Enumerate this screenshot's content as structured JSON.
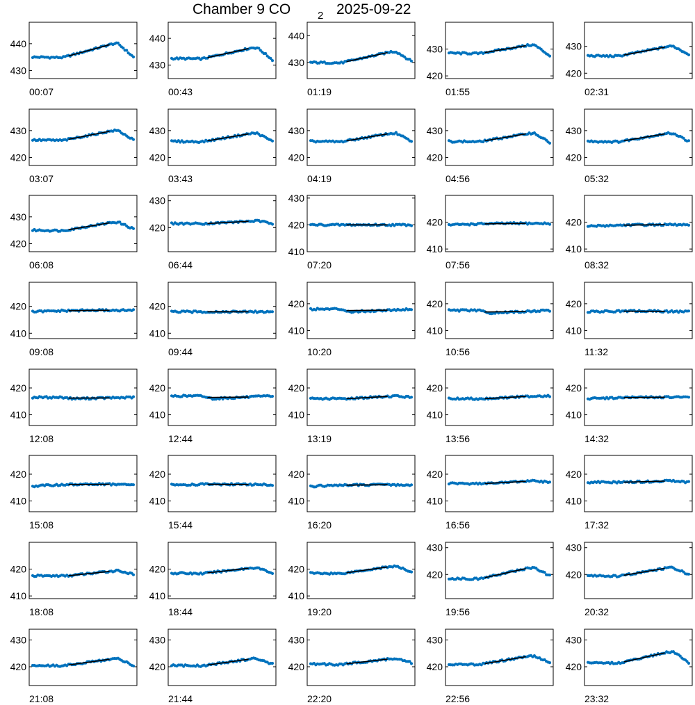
{
  "title": {
    "main": "Chamber 9 CO",
    "subscript": "2",
    "date": "2025-09-22"
  },
  "colors": {
    "measured": "#0072BD",
    "fit": "#000000",
    "axis": "#000000"
  },
  "chart_data": {
    "type": "scatter",
    "title": "Chamber 9 CO2 2025-09-22",
    "layout": "8 rows x 5 columns of small multiples",
    "grid": false,
    "panels": [
      {
        "label": "00:07",
        "ylim": [
          427,
          448
        ],
        "yticks": [
          430,
          440
        ],
        "shape": "rise-peak",
        "base": 435,
        "peak": 440,
        "end": 435
      },
      {
        "label": "00:43",
        "ylim": [
          425,
          446
        ],
        "yticks": [
          430,
          440
        ],
        "shape": "rise-peak",
        "base": 432.5,
        "peak": 436.5,
        "end": 432
      },
      {
        "label": "01:19",
        "ylim": [
          424,
          445
        ],
        "yticks": [
          430,
          440
        ],
        "shape": "rise-peak",
        "base": 430,
        "peak": 434,
        "end": 430.5
      },
      {
        "label": "01:55",
        "ylim": [
          419,
          440
        ],
        "yticks": [
          420,
          430
        ],
        "shape": "rise-peak",
        "base": 428.5,
        "peak": 431.5,
        "end": 427.5
      },
      {
        "label": "02:31",
        "ylim": [
          418,
          439
        ],
        "yticks": [
          420,
          430
        ],
        "shape": "rise-peak",
        "base": 426.5,
        "peak": 430,
        "end": 427
      },
      {
        "label": "03:07",
        "ylim": [
          417,
          438
        ],
        "yticks": [
          420,
          430
        ],
        "shape": "rise-peak",
        "base": 426.5,
        "peak": 430,
        "end": 426.5
      },
      {
        "label": "03:43",
        "ylim": [
          417,
          438
        ],
        "yticks": [
          420,
          430
        ],
        "shape": "rise-peak",
        "base": 426,
        "peak": 429,
        "end": 426
      },
      {
        "label": "04:19",
        "ylim": [
          417,
          438
        ],
        "yticks": [
          420,
          430
        ],
        "shape": "rise-peak",
        "base": 426,
        "peak": 429,
        "end": 426
      },
      {
        "label": "04:56",
        "ylim": [
          417,
          438
        ],
        "yticks": [
          420,
          430
        ],
        "shape": "rise-peak",
        "base": 426,
        "peak": 429,
        "end": 425.5
      },
      {
        "label": "05:32",
        "ylim": [
          417,
          438
        ],
        "yticks": [
          420,
          430
        ],
        "shape": "rise-peak",
        "base": 426,
        "peak": 429,
        "end": 426
      },
      {
        "label": "06:08",
        "ylim": [
          417,
          438
        ],
        "yticks": [
          420,
          430
        ],
        "shape": "rise-peak",
        "base": 425,
        "peak": 428,
        "end": 425.5
      },
      {
        "label": "06:44",
        "ylim": [
          411,
          432
        ],
        "yticks": [
          420,
          430
        ],
        "shape": "gentle",
        "base": 421.5,
        "peak": 422.5,
        "end": 421.5
      },
      {
        "label": "07:20",
        "ylim": [
          410,
          431
        ],
        "yticks": [
          410,
          420,
          430
        ],
        "shape": "flat",
        "base": 420,
        "peak": 420,
        "end": 420
      },
      {
        "label": "07:56",
        "ylim": [
          409,
          430
        ],
        "yticks": [
          410,
          420
        ],
        "shape": "flat",
        "base": 419,
        "peak": 419.5,
        "end": 419.5
      },
      {
        "label": "08:32",
        "ylim": [
          409,
          430
        ],
        "yticks": [
          410,
          420
        ],
        "shape": "flat",
        "base": 418.5,
        "peak": 419,
        "end": 419
      },
      {
        "label": "09:08",
        "ylim": [
          408,
          429
        ],
        "yticks": [
          410,
          420
        ],
        "shape": "flat",
        "base": 418,
        "peak": 418.5,
        "end": 418.5
      },
      {
        "label": "09:44",
        "ylim": [
          408,
          429
        ],
        "yticks": [
          410,
          420
        ],
        "shape": "flat",
        "base": 418,
        "peak": 418,
        "end": 418
      },
      {
        "label": "10:20",
        "ylim": [
          407,
          428
        ],
        "yticks": [
          410,
          420
        ],
        "shape": "dip",
        "base": 417,
        "peak": 418,
        "end": 417.5
      },
      {
        "label": "10:56",
        "ylim": [
          407,
          428
        ],
        "yticks": [
          410,
          420
        ],
        "shape": "dip",
        "base": 416.5,
        "peak": 417.5,
        "end": 417
      },
      {
        "label": "11:32",
        "ylim": [
          407,
          428
        ],
        "yticks": [
          410,
          420
        ],
        "shape": "flat",
        "base": 417,
        "peak": 417.5,
        "end": 417
      },
      {
        "label": "12:08",
        "ylim": [
          406,
          427
        ],
        "yticks": [
          410,
          420
        ],
        "shape": "dip",
        "base": 416,
        "peak": 416.5,
        "end": 416.5
      },
      {
        "label": "12:44",
        "ylim": [
          406,
          427
        ],
        "yticks": [
          410,
          420
        ],
        "shape": "dip",
        "base": 416,
        "peak": 417,
        "end": 416.5
      },
      {
        "label": "13:19",
        "ylim": [
          406,
          427
        ],
        "yticks": [
          410,
          420
        ],
        "shape": "gentle",
        "base": 416,
        "peak": 417,
        "end": 416.5
      },
      {
        "label": "13:56",
        "ylim": [
          406,
          427
        ],
        "yticks": [
          410,
          420
        ],
        "shape": "gentle",
        "base": 416,
        "peak": 417,
        "end": 417
      },
      {
        "label": "14:32",
        "ylim": [
          406,
          427
        ],
        "yticks": [
          410,
          420
        ],
        "shape": "flat",
        "base": 416,
        "peak": 416.5,
        "end": 416.5
      },
      {
        "label": "15:08",
        "ylim": [
          406,
          427
        ],
        "yticks": [
          410,
          420
        ],
        "shape": "flat",
        "base": 415.5,
        "peak": 416.5,
        "end": 416
      },
      {
        "label": "15:44",
        "ylim": [
          406,
          427
        ],
        "yticks": [
          410,
          420
        ],
        "shape": "flat",
        "base": 416,
        "peak": 416.5,
        "end": 416
      },
      {
        "label": "16:20",
        "ylim": [
          406,
          427
        ],
        "yticks": [
          410,
          420
        ],
        "shape": "flat",
        "base": 415.5,
        "peak": 416,
        "end": 416
      },
      {
        "label": "16:56",
        "ylim": [
          406,
          427
        ],
        "yticks": [
          410,
          420
        ],
        "shape": "gentle",
        "base": 416.5,
        "peak": 417.5,
        "end": 417
      },
      {
        "label": "17:32",
        "ylim": [
          406,
          427
        ],
        "yticks": [
          410,
          420
        ],
        "shape": "gentle",
        "base": 417,
        "peak": 417.5,
        "end": 417
      },
      {
        "label": "18:08",
        "ylim": [
          409,
          430
        ],
        "yticks": [
          410,
          420
        ],
        "shape": "gentle",
        "base": 417.5,
        "peak": 419.5,
        "end": 418
      },
      {
        "label": "18:44",
        "ylim": [
          409,
          430
        ],
        "yticks": [
          410,
          420
        ],
        "shape": "rise-peak",
        "base": 418.5,
        "peak": 420.5,
        "end": 418.5
      },
      {
        "label": "19:20",
        "ylim": [
          409,
          430
        ],
        "yticks": [
          410,
          420
        ],
        "shape": "rise-peak",
        "base": 418.5,
        "peak": 421,
        "end": 419
      },
      {
        "label": "19:56",
        "ylim": [
          411,
          432
        ],
        "yticks": [
          420,
          430
        ],
        "shape": "rise-peak",
        "base": 418.5,
        "peak": 422.5,
        "end": 419.5
      },
      {
        "label": "20:32",
        "ylim": [
          411,
          432
        ],
        "yticks": [
          420,
          430
        ],
        "shape": "rise-peak",
        "base": 419.5,
        "peak": 422.5,
        "end": 420
      },
      {
        "label": "21:08",
        "ylim": [
          413,
          434
        ],
        "yticks": [
          420,
          430
        ],
        "shape": "rise-peak",
        "base": 420.5,
        "peak": 423,
        "end": 420.5
      },
      {
        "label": "21:44",
        "ylim": [
          413,
          434
        ],
        "yticks": [
          420,
          430
        ],
        "shape": "rise-peak",
        "base": 420.5,
        "peak": 423,
        "end": 421
      },
      {
        "label": "22:20",
        "ylim": [
          413,
          434
        ],
        "yticks": [
          420,
          430
        ],
        "shape": "rise-peak",
        "base": 421,
        "peak": 423,
        "end": 421.5
      },
      {
        "label": "22:56",
        "ylim": [
          413,
          434
        ],
        "yticks": [
          420,
          430
        ],
        "shape": "rise-peak",
        "base": 421,
        "peak": 424,
        "end": 421.5
      },
      {
        "label": "23:32",
        "ylim": [
          413,
          434
        ],
        "yticks": [
          420,
          430
        ],
        "shape": "rise-peak",
        "base": 421.5,
        "peak": 425.5,
        "end": 421.5
      }
    ]
  }
}
